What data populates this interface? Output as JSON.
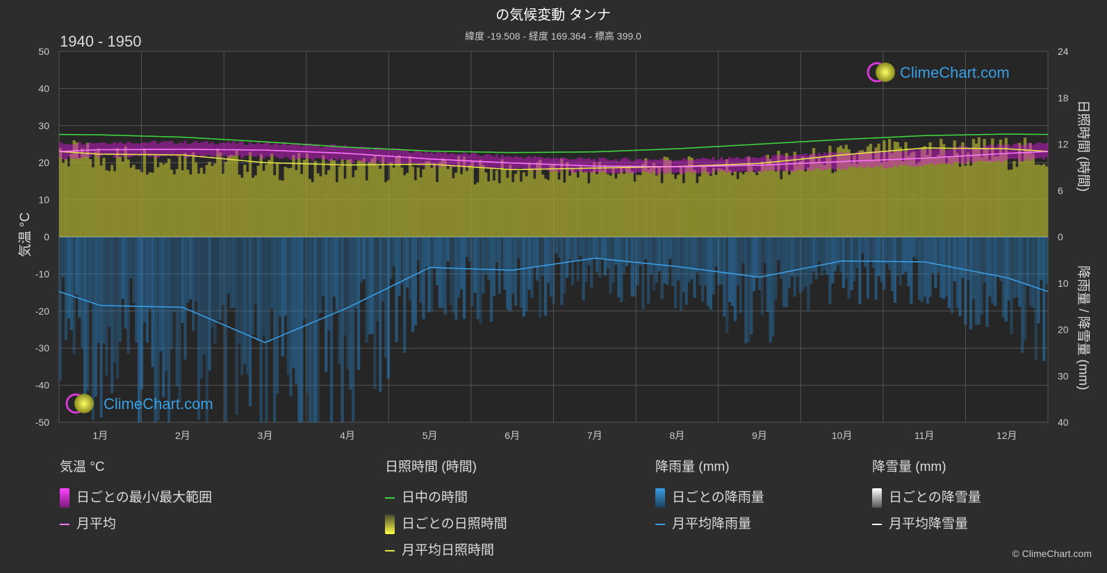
{
  "title": "の気候変動 タンナ",
  "subtitle": "緯度 -19.508 - 経度 169.364 - 標高 399.0",
  "period": "1940 - 1950",
  "brand": "ClimeChart.com",
  "copyright": "© ClimeChart.com",
  "axes": {
    "left_label": "気温 °C",
    "right_top_label": "日照時間 (時間)",
    "right_bottom_label": "降雨量 / 降雪量 (mm)",
    "left_ticks": [
      "50",
      "40",
      "30",
      "20",
      "10",
      "0",
      "-10",
      "-20",
      "-30",
      "-40",
      "-50"
    ],
    "right_top_ticks": [
      "24",
      "18",
      "12",
      "6",
      "0"
    ],
    "right_bottom_ticks": [
      "10",
      "20",
      "30",
      "40"
    ]
  },
  "legend": {
    "temperature": {
      "header": "気温 °C",
      "range": "日ごとの最小/最大範囲",
      "mean": "月平均"
    },
    "sunshine": {
      "header": "日照時間 (時間)",
      "daylight": "日中の時間",
      "daily": "日ごとの日照時間",
      "mean": "月平均日照時間"
    },
    "rain": {
      "header": "降雨量 (mm)",
      "daily": "日ごとの降雨量",
      "mean": "月平均降雨量"
    },
    "snow": {
      "header": "降雪量 (mm)",
      "daily": "日ごとの降雪量",
      "mean": "月平均降雪量"
    }
  },
  "colors": {
    "daylight": "#3dd63d",
    "sunshine_line": "#e6e64a",
    "sunshine_fill": "#a5a532",
    "temp_range": "#d61ad6",
    "temp_mean": "#ff77ff",
    "rain": "#2a7fc0",
    "rain_line": "#3a9ee6",
    "snow": "#ffffff"
  },
  "chart_data": {
    "type": "area",
    "categories": [
      "1月",
      "2月",
      "3月",
      "4月",
      "5月",
      "6月",
      "7月",
      "8月",
      "9月",
      "10月",
      "11月",
      "12月"
    ],
    "temp_ylim": [
      -50,
      50
    ],
    "sun_ylim": [
      0,
      24
    ],
    "rain_ylim": [
      0,
      40
    ],
    "series": [
      {
        "name": "日中の時間",
        "axis": "sunshine",
        "values": [
          13.2,
          12.9,
          12.3,
          11.6,
          11.1,
          10.9,
          11.0,
          11.4,
          12.0,
          12.6,
          13.1,
          13.3
        ]
      },
      {
        "name": "月平均日照時間",
        "axis": "sunshine",
        "values": [
          10.7,
          10.6,
          9.6,
          9.3,
          9.4,
          8.7,
          8.9,
          9.1,
          9.5,
          10.6,
          11.5,
          11.4
        ]
      },
      {
        "name": "月平均",
        "axis": "temperature",
        "values": [
          23.5,
          23.6,
          23.4,
          22.5,
          21.0,
          19.9,
          19.1,
          18.9,
          19.3,
          20.3,
          21.2,
          22.5
        ]
      },
      {
        "name": "日ごとの最小/最大範囲 (最大)",
        "axis": "temperature",
        "values": [
          25.5,
          25.5,
          25.2,
          24.3,
          22.8,
          21.6,
          20.9,
          20.8,
          21.4,
          22.6,
          23.5,
          24.8
        ]
      },
      {
        "name": "日ごとの最小/最大範囲 (最小)",
        "axis": "temperature",
        "values": [
          21.8,
          21.8,
          21.5,
          20.5,
          19.2,
          18.3,
          17.4,
          17.2,
          17.5,
          18.4,
          19.4,
          20.6
        ]
      },
      {
        "name": "月平均降雨量",
        "axis": "rain",
        "values": [
          14.8,
          15.2,
          22.8,
          15.3,
          6.6,
          7.2,
          4.6,
          6.4,
          8.7,
          5.2,
          5.4,
          8.8
        ]
      }
    ]
  }
}
